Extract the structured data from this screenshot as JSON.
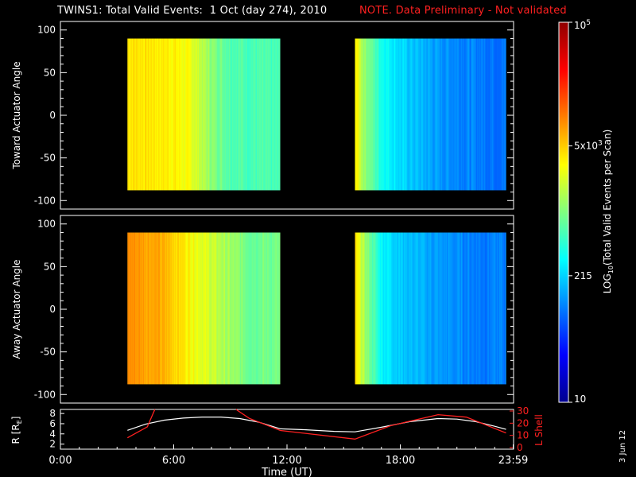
{
  "header": {
    "title": "TWINS1: Total Valid Events:  1 Oct (day 274), 2010",
    "note": "NOTE. Data Preliminary - Not validated",
    "note_color": "#ff2020"
  },
  "footer": {
    "date_stamp": "3 Jun 12"
  },
  "colors": {
    "axis": "#ffffff",
    "lshell": "#ff2020",
    "r": "#ffffff",
    "background": "#000000"
  },
  "chart_data": [
    {
      "type": "heatmap",
      "ylabel": "Toward Actuator Angle",
      "yticks": [
        100,
        50,
        0,
        -50,
        -100
      ],
      "ylim": [
        -110,
        110
      ],
      "xlim": [
        0,
        24
      ],
      "data_y_range": [
        -88,
        90
      ],
      "data_blocks": [
        {
          "x_start": 3.55,
          "x_end": 11.65
        },
        {
          "x_start": 15.6,
          "x_end": 23.6
        }
      ],
      "log_value_profile_by_hour": [
        [
          3.55,
          3.62
        ],
        [
          4.5,
          3.6
        ],
        [
          6.0,
          3.55
        ],
        [
          7.0,
          3.4
        ],
        [
          8.0,
          3.05
        ],
        [
          9.0,
          2.85
        ],
        [
          10.0,
          2.8
        ],
        [
          11.65,
          2.75
        ],
        [
          15.6,
          3.6
        ],
        [
          16.0,
          3.15
        ],
        [
          17.0,
          2.6
        ],
        [
          18.0,
          2.35
        ],
        [
          20.0,
          2.1
        ],
        [
          22.0,
          2.0
        ],
        [
          23.6,
          1.95
        ]
      ]
    },
    {
      "type": "heatmap",
      "ylabel": "Away Actuator Angle",
      "yticks": [
        100,
        50,
        0,
        -50,
        -100
      ],
      "ylim": [
        -110,
        110
      ],
      "xlim": [
        0,
        24
      ],
      "data_y_range": [
        -88,
        90
      ],
      "data_blocks": [
        {
          "x_start": 3.55,
          "x_end": 11.65
        },
        {
          "x_start": 15.6,
          "x_end": 23.6
        }
      ],
      "log_value_profile_by_hour": [
        [
          3.55,
          3.95
        ],
        [
          5.0,
          3.85
        ],
        [
          6.0,
          3.7
        ],
        [
          7.0,
          3.5
        ],
        [
          8.0,
          3.3
        ],
        [
          9.0,
          3.1
        ],
        [
          10.0,
          2.95
        ],
        [
          11.65,
          2.95
        ],
        [
          15.6,
          3.6
        ],
        [
          16.0,
          3.2
        ],
        [
          17.0,
          2.5
        ],
        [
          18.0,
          2.3
        ],
        [
          20.0,
          2.1
        ],
        [
          22.0,
          2.0
        ],
        [
          23.6,
          2.0
        ]
      ]
    },
    {
      "type": "line",
      "ylabel": "R [R",
      "ylabel_subscript": "E",
      "ylabel_close": "]",
      "ylabel_right": "L Shell",
      "ylim": [
        1,
        8.8
      ],
      "yticks": [
        2,
        4,
        6,
        8
      ],
      "ylim_right": [
        0,
        30
      ],
      "yticks_right": [
        0,
        10,
        20,
        30
      ],
      "xlim": [
        0,
        24
      ],
      "xticks": [
        "0:00",
        "6:00",
        "12:00",
        "18:00",
        "23:59"
      ],
      "xtick_values": [
        0,
        6,
        12,
        18,
        23.98
      ],
      "xlabel": "Time (UT)",
      "series": [
        {
          "axis": "left",
          "x": [
            3.55,
            4.5,
            5.5,
            6.5,
            7.5,
            8.5,
            9.5,
            10.5,
            11.65,
            13.0,
            14.5,
            15.6,
            17.0,
            18.5,
            20.0,
            21.0,
            22.0,
            23.0,
            23.6
          ],
          "y": [
            4.7,
            5.9,
            6.7,
            7.1,
            7.3,
            7.3,
            7.0,
            6.3,
            5.0,
            4.8,
            4.5,
            4.4,
            5.3,
            6.4,
            7.0,
            6.9,
            6.4,
            5.5,
            4.9
          ]
        },
        {
          "axis": "right",
          "segments": [
            {
              "x": [
                3.55,
                4.6,
                5.0
              ],
              "y": [
                8,
                17,
                32
              ]
            },
            {
              "x": [
                9.3,
                10.0,
                11.65,
                15.6,
                17.5,
                20.0,
                21.5,
                23.6
              ],
              "y": [
                32,
                24,
                14,
                7,
                18,
                27,
                25,
                12
              ]
            }
          ]
        }
      ]
    }
  ],
  "colorbar": {
    "ylabel": "LOG",
    "ylabel_subscript": "10",
    "ylabel_rest": "(Total Valid  Events per Scan)",
    "log_range": [
      1,
      5
    ],
    "tick_labels": [
      {
        "log": 5,
        "base": "10",
        "exp": "5"
      },
      {
        "log": 3.699,
        "base": "5x10",
        "exp": "3"
      },
      {
        "log": 2.332,
        "text": "215"
      },
      {
        "log": 1,
        "text": "10"
      }
    ]
  }
}
